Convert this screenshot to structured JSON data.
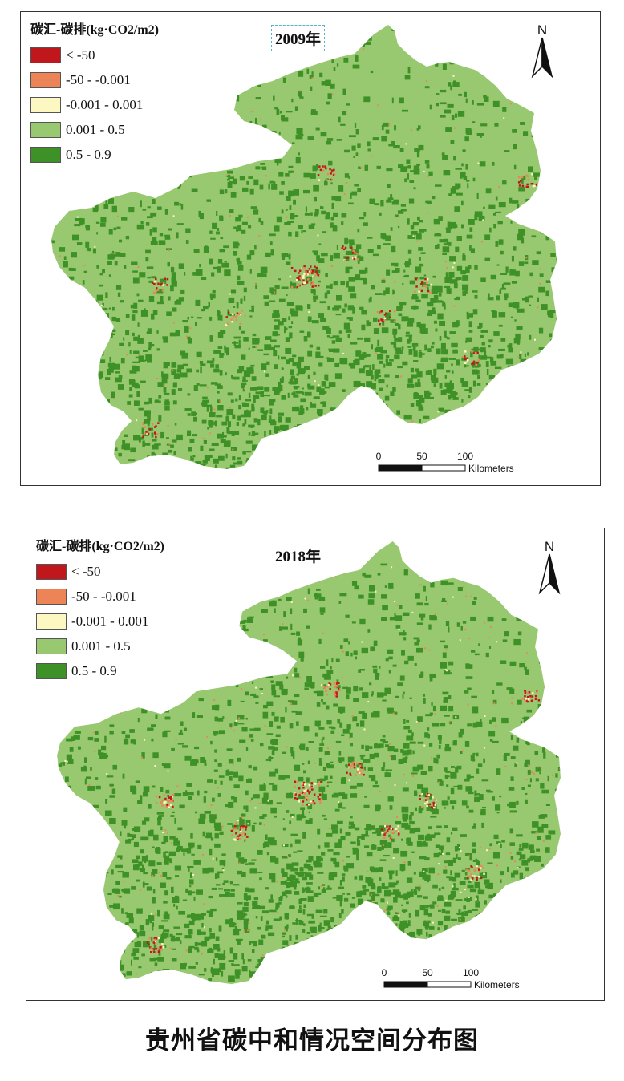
{
  "main_title": "贵州省碳中和情况空间分布图",
  "colors": {
    "class1": "#c0171d",
    "class2": "#ec8458",
    "class3": "#fdf8c1",
    "class4": "#98c971",
    "class5": "#3e9126",
    "border": "#333333"
  },
  "maps": [
    {
      "year": "2009年",
      "legend_title": "碳汇-碳排(kg·CO2/m2)",
      "legend": [
        "< -50",
        "-50 - -0.001",
        "-0.001 - 0.001",
        "0.001 - 0.5",
        "0.5 - 0.9"
      ],
      "north_label": "N",
      "scale": {
        "ticks": [
          "0",
          "50",
          "100"
        ],
        "unit": "Kilometers"
      }
    },
    {
      "year": "2018年",
      "legend_title": "碳汇-碳排(kg·CO2/m2)",
      "legend": [
        "< -50",
        "-50 - -0.001",
        "-0.001 - 0.001",
        "0.001 - 0.5",
        "0.5 - 0.9"
      ],
      "north_label": "N",
      "scale": {
        "ticks": [
          "0",
          "50",
          "100"
        ],
        "unit": "Kilometers"
      }
    }
  ]
}
